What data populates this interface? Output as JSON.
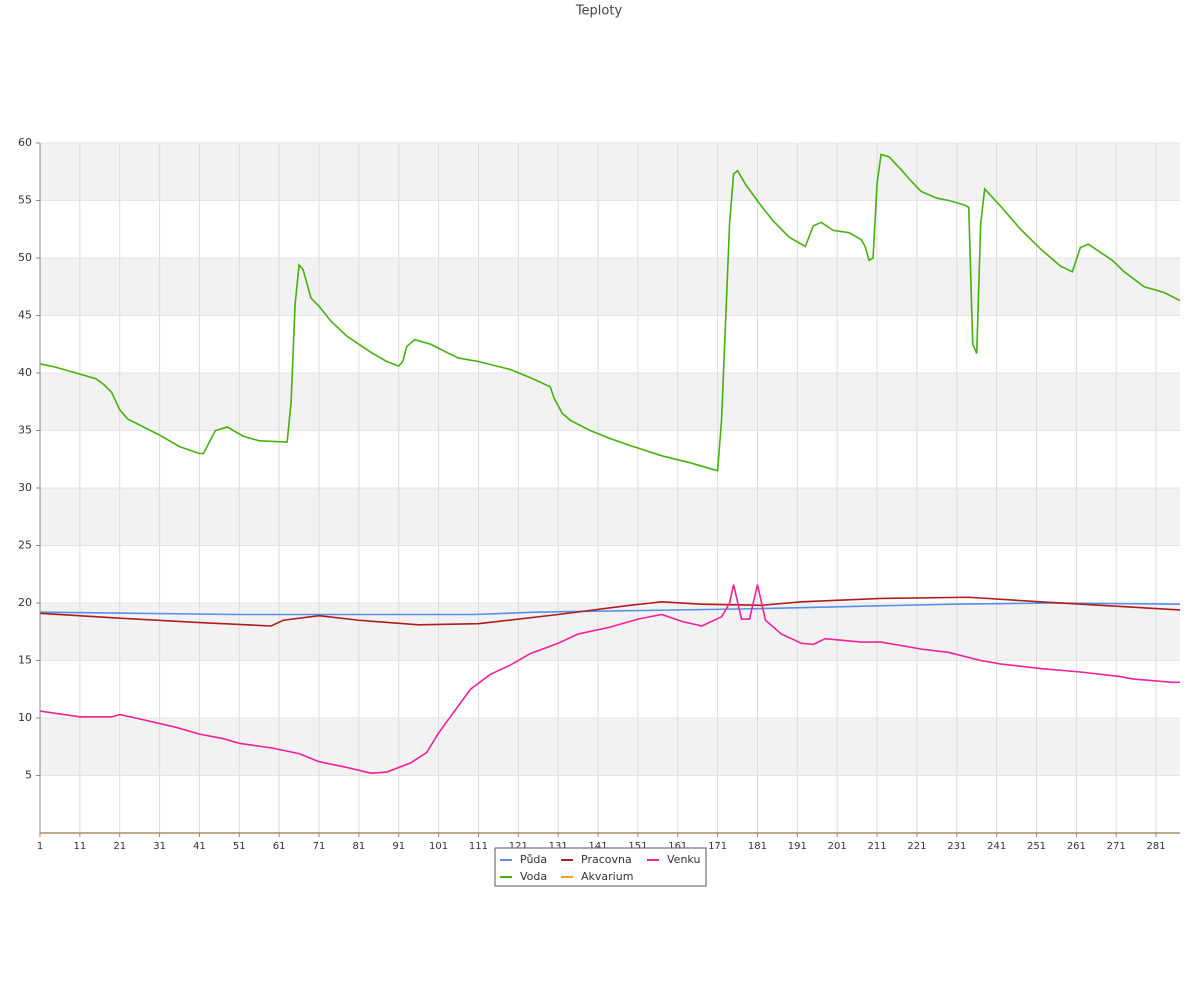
{
  "chart_data": {
    "type": "line",
    "title": "Teploty",
    "xlim": [
      1,
      287
    ],
    "xticks": [
      1,
      11,
      21,
      31,
      41,
      51,
      61,
      71,
      81,
      91,
      101,
      111,
      121,
      131,
      141,
      151,
      161,
      171,
      181,
      191,
      201,
      211,
      221,
      231,
      241,
      251,
      261,
      271,
      281
    ],
    "ylim": [
      0,
      60
    ],
    "yticks": [
      5,
      10,
      15,
      20,
      25,
      30,
      35,
      40,
      45,
      50,
      55,
      60
    ],
    "grid": true,
    "legend": "bottom",
    "series": [
      {
        "name": "Půda",
        "color": "#5b8fe6",
        "x": [
          1,
          50,
          110,
          125,
          180,
          205,
          230,
          255,
          287
        ],
        "values": [
          19.2,
          19.0,
          19.0,
          19.2,
          19.5,
          19.7,
          19.9,
          20.0,
          19.9
        ]
      },
      {
        "name": "Pracovna",
        "color": "#b01c1c",
        "x": [
          1,
          20,
          41,
          59,
          62,
          71,
          81,
          96,
          111,
          131,
          149,
          157,
          167,
          182,
          192,
          212,
          234,
          252,
          272,
          287
        ],
        "values": [
          19.1,
          18.7,
          18.3,
          18.0,
          18.5,
          18.9,
          18.5,
          18.1,
          18.2,
          19.0,
          19.8,
          20.1,
          19.9,
          19.8,
          20.1,
          20.4,
          20.5,
          20.1,
          19.7,
          19.4
        ]
      },
      {
        "name": "Venku",
        "color": "#f0219b",
        "x": [
          1,
          7,
          11,
          19,
          21,
          25,
          35,
          41,
          47,
          51,
          57,
          59,
          66,
          71,
          78,
          84,
          88,
          94,
          98,
          101,
          109,
          114,
          119,
          124,
          131,
          136,
          144,
          151,
          157,
          162,
          167,
          172,
          174,
          175,
          177,
          179,
          181,
          183,
          187,
          192,
          195,
          198,
          207,
          212,
          222,
          229,
          237,
          242,
          252,
          262,
          272,
          275,
          285,
          287
        ],
        "values": [
          10.6,
          10.3,
          10.1,
          10.1,
          10.3,
          10.0,
          9.2,
          8.6,
          8.2,
          7.8,
          7.5,
          7.4,
          6.9,
          6.2,
          5.7,
          5.2,
          5.3,
          6.1,
          7.0,
          8.7,
          12.5,
          13.8,
          14.6,
          15.6,
          16.5,
          17.3,
          17.9,
          18.6,
          19.0,
          18.4,
          18.0,
          18.8,
          20,
          21.6,
          18.6,
          18.6,
          21.6,
          18.5,
          17.3,
          16.5,
          16.4,
          16.9,
          16.6,
          16.6,
          16.0,
          15.7,
          15.0,
          14.7,
          14.3,
          14.0,
          13.6,
          13.4,
          13.1,
          13.1
        ]
      },
      {
        "name": "Voda",
        "color": "#44b20a",
        "x": [
          1,
          5,
          11,
          15,
          17,
          19,
          21,
          23,
          27,
          31,
          36,
          41,
          42,
          45,
          48,
          52,
          56,
          63,
          64,
          65,
          66,
          67,
          69,
          71,
          74,
          78,
          84,
          88,
          91,
          92,
          93,
          95,
          99,
          103,
          106,
          111,
          119,
          124,
          129,
          130,
          132,
          134,
          139,
          144,
          149,
          157,
          164,
          169,
          171,
          172,
          174,
          175,
          176,
          178,
          182,
          185,
          189,
          193,
          195,
          197,
          200,
          204,
          207,
          208,
          209,
          210,
          211,
          212,
          214,
          217,
          219,
          222,
          226,
          229,
          233,
          234,
          235,
          236,
          237,
          238,
          242,
          247,
          252,
          257,
          260,
          262,
          264,
          270,
          273,
          278,
          283,
          287
        ],
        "values": [
          40.8,
          40.5,
          39.9,
          39.5,
          39.0,
          38.3,
          36.8,
          36.0,
          35.3,
          34.6,
          33.6,
          33.0,
          33.0,
          35.0,
          35.3,
          34.5,
          34.1,
          34.0,
          37.5,
          46,
          49.4,
          49,
          46.5,
          45.8,
          44.5,
          43.2,
          41.8,
          41,
          40.6,
          41,
          42.3,
          42.9,
          42.5,
          41.8,
          41.3,
          41,
          40.3,
          39.6,
          38.8,
          37.8,
          36.5,
          35.9,
          35.0,
          34.3,
          33.7,
          32.8,
          32.2,
          31.7,
          31.5,
          36,
          53,
          57.3,
          57.6,
          56.4,
          54.5,
          53.2,
          51.8,
          51,
          52.8,
          53.1,
          52.4,
          52.2,
          51.6,
          51,
          49.8,
          50,
          56.5,
          59,
          58.8,
          57.7,
          56.9,
          55.8,
          55.2,
          55.0,
          54.6,
          54.4,
          42.5,
          41.7,
          53,
          56,
          54.5,
          52.5,
          50.8,
          49.3,
          48.8,
          50.9,
          51.2,
          49.8,
          48.8,
          47.5,
          47,
          46.3
        ]
      },
      {
        "name": "Akvarium",
        "color": "#e8a317",
        "x": [
          1,
          287
        ],
        "values": [
          0,
          0
        ]
      }
    ]
  }
}
